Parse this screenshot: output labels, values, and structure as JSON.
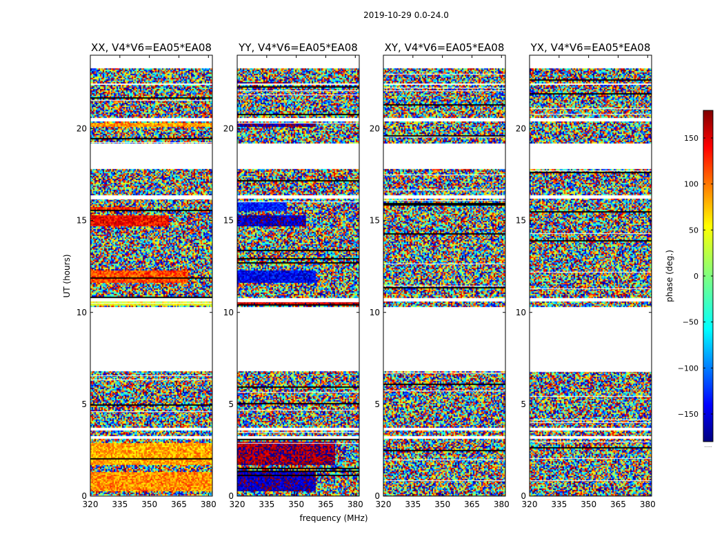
{
  "chart_data": {
    "type": "heatmap",
    "suptitle": "2019-10-29 0.0-24.0",
    "xlabel": "frequency (MHz)",
    "ylabel": "UT (hours)",
    "xlim": [
      320,
      382
    ],
    "ylim": [
      0,
      24
    ],
    "xticks": [
      320,
      335,
      350,
      365,
      380
    ],
    "yticks": [
      0,
      5,
      10,
      15,
      20
    ],
    "xticklabels": [
      "320",
      "335",
      "350",
      "365",
      "380"
    ],
    "yticklabels": [
      "0",
      "5",
      "10",
      "15",
      "20"
    ],
    "colorbar": {
      "label": "phase (deg.)",
      "range": [
        -180,
        180
      ],
      "ticks": [
        150,
        100,
        50,
        0,
        -50,
        -100,
        -150
      ],
      "ticklabels": [
        "150",
        "100",
        "50",
        "0",
        "−50",
        "−100",
        "−150"
      ],
      "colormap": "jet",
      "footnote": "......"
    },
    "data_segments_ut": [
      {
        "start": 0.0,
        "end": 3.1
      },
      {
        "start": 3.3,
        "end": 3.55
      },
      {
        "start": 3.7,
        "end": 6.8
      },
      {
        "start": 10.3,
        "end": 10.6
      },
      {
        "start": 10.8,
        "end": 16.2
      },
      {
        "start": 16.4,
        "end": 17.8
      },
      {
        "start": 19.2,
        "end": 20.4
      },
      {
        "start": 20.6,
        "end": 22.4
      },
      {
        "start": 22.5,
        "end": 23.3
      }
    ],
    "panels": [
      {
        "title": "XX, V4*V6=EA05*EA08",
        "features": [
          {
            "ut": [
              11.6,
              12.3
            ],
            "phase": 110,
            "freq_max": 370
          },
          {
            "ut": [
              14.7,
              15.3
            ],
            "phase": 135,
            "freq_max": 360
          },
          {
            "ut": [
              15.5,
              15.7
            ],
            "phase": 120,
            "freq_max": 345
          },
          {
            "ut": [
              10.35,
              10.6
            ],
            "phase": 40,
            "freq_max": 382
          },
          {
            "ut": [
              20.1,
              20.3
            ],
            "phase": 80,
            "freq_max": 382
          },
          {
            "ut": [
              0.3,
              1.3
            ],
            "phase": 85,
            "freq_max": 382
          },
          {
            "ut": [
              1.7,
              2.9
            ],
            "phase": 75,
            "freq_max": 382
          }
        ]
      },
      {
        "title": "YY, V4*V6=EA05*EA08",
        "features": [
          {
            "ut": [
              11.6,
              12.3
            ],
            "phase": -140,
            "freq_max": 360
          },
          {
            "ut": [
              14.7,
              15.3
            ],
            "phase": -155,
            "freq_max": 355
          },
          {
            "ut": [
              15.5,
              16.0
            ],
            "phase": -125,
            "freq_max": 345
          },
          {
            "ut": [
              10.35,
              10.6
            ],
            "phase": 150,
            "freq_max": 382
          },
          {
            "ut": [
              20.1,
              20.3
            ],
            "phase": -170,
            "freq_max": 360
          },
          {
            "ut": [
              22.4,
              22.55
            ],
            "phase": 170,
            "freq_max": 345
          },
          {
            "ut": [
              0.3,
              1.3
            ],
            "phase": -160,
            "freq_max": 360
          },
          {
            "ut": [
              1.7,
              3.0
            ],
            "phase": 170,
            "freq_max": 370
          }
        ]
      },
      {
        "title": "XY, V4*V6=EA05*EA08",
        "features": []
      },
      {
        "title": "YX, V4*V6=EA05*EA08",
        "features": []
      }
    ]
  }
}
